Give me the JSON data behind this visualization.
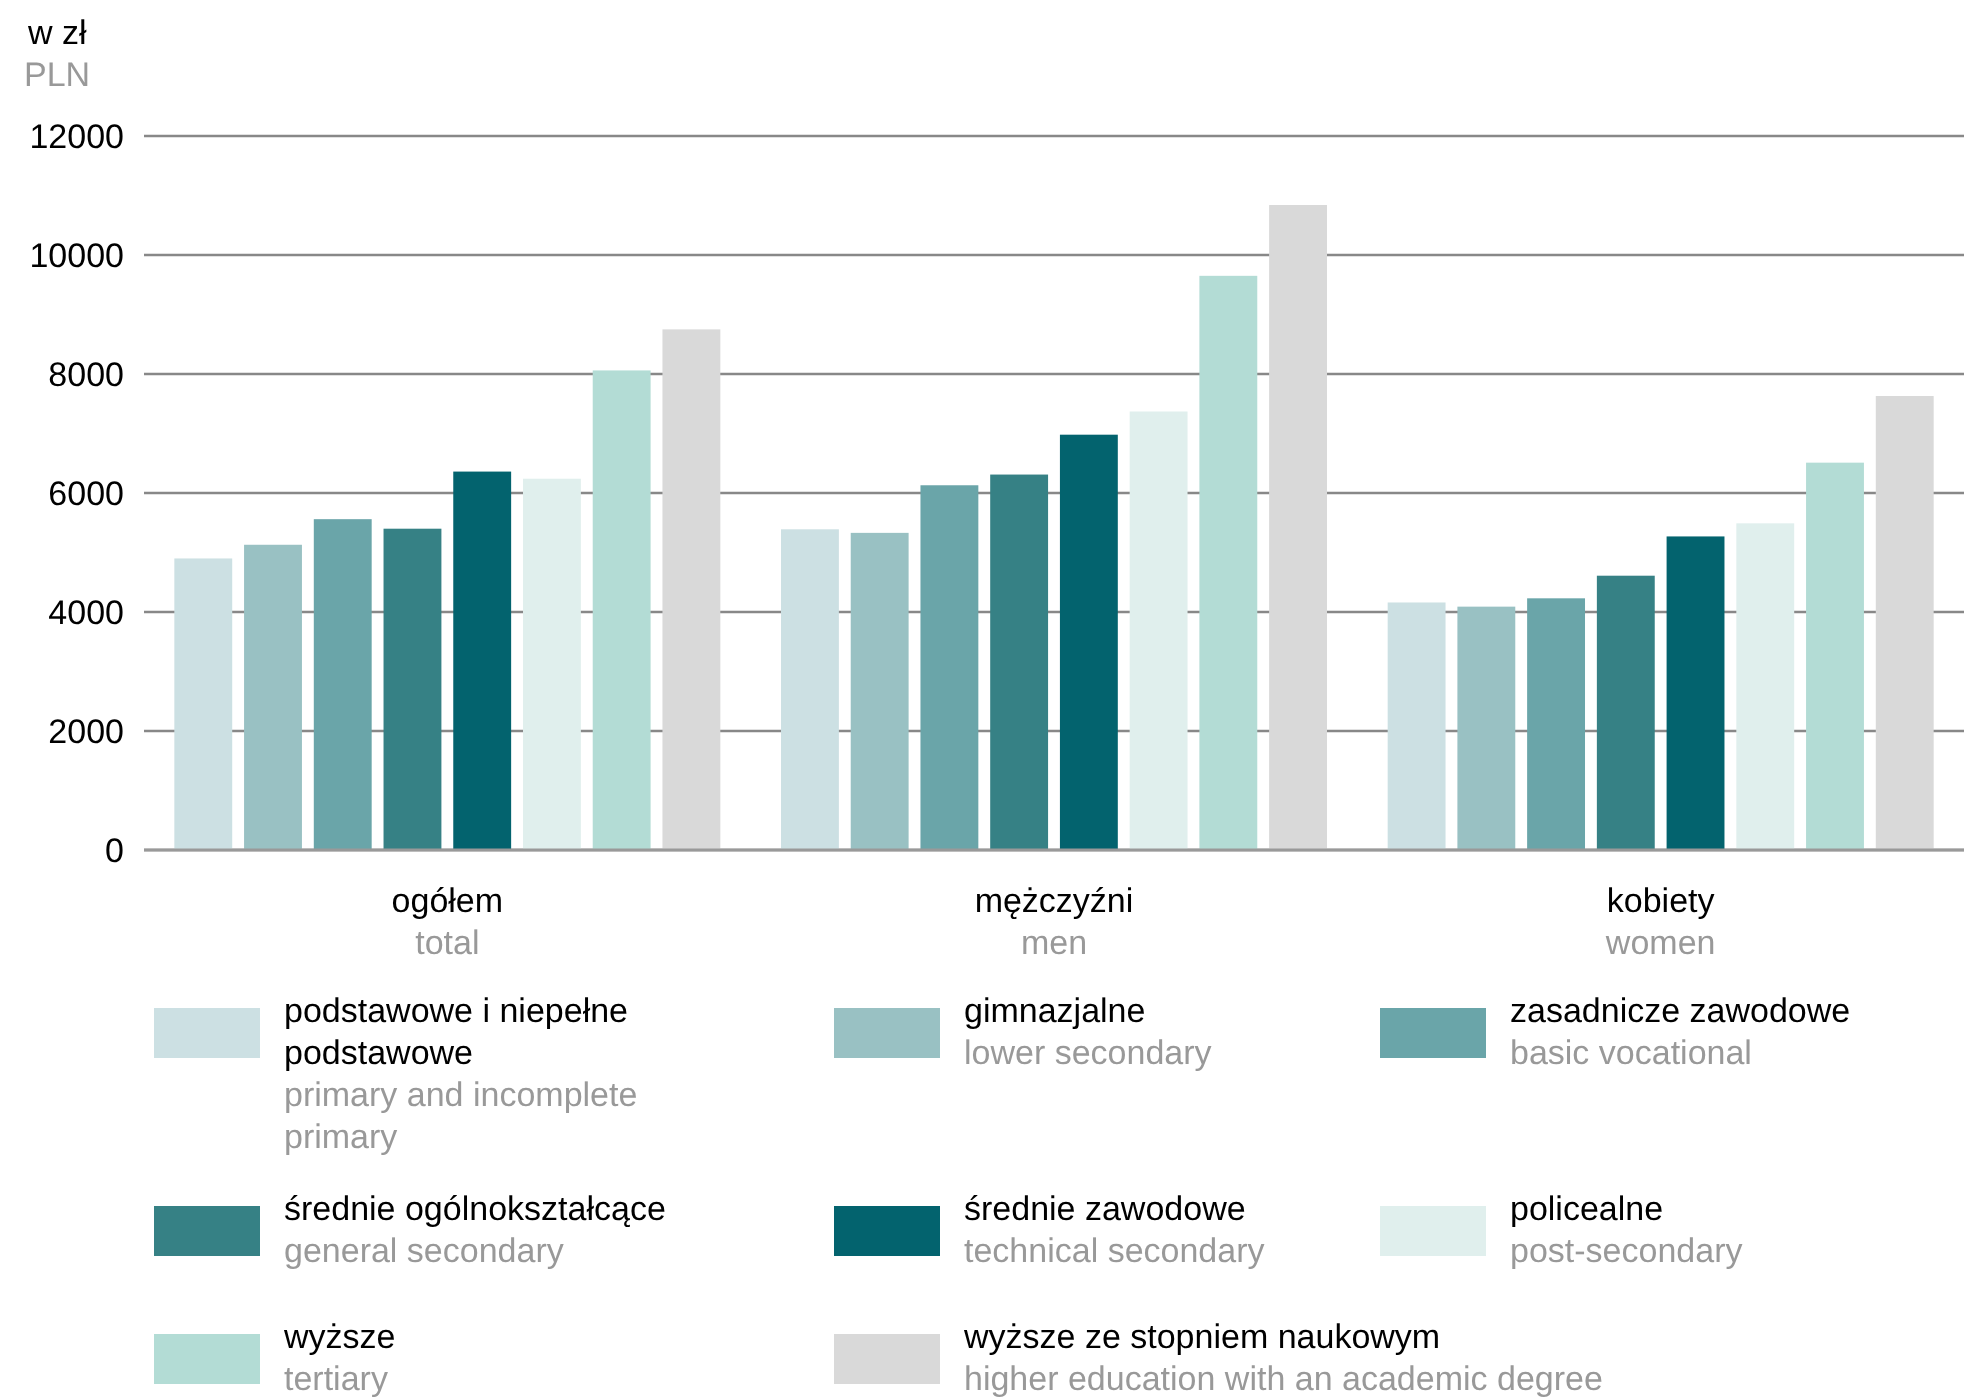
{
  "chart_data": {
    "type": "bar",
    "ylabel": "w zł\nPLN",
    "categories": [
      "ogółem\ntotal",
      "mężczyźni\nmen",
      "kobiety\nwomen"
    ],
    "ylim": [
      0,
      12000
    ],
    "yticks": [
      0,
      2000,
      4000,
      6000,
      8000,
      10000,
      12000
    ],
    "grid": "y",
    "legend": "bottom",
    "series": [
      {
        "name": "podstawowe i niepełne podstawowe\nprimary and incomplete primary",
        "color": "#cce0e3",
        "values": [
          4900,
          5390,
          4160
        ]
      },
      {
        "name": "gimnazjalne\nlower secondary",
        "color": "#99c1c3",
        "values": [
          5130,
          5330,
          4090
        ]
      },
      {
        "name": "zasadnicze zawodowe\nbasic vocational",
        "color": "#6aa5a9",
        "values": [
          5560,
          6130,
          4230
        ]
      },
      {
        "name": "średnie ogólnokształcące\ngeneral secondary",
        "color": "#368185",
        "values": [
          5400,
          6310,
          4610
        ]
      },
      {
        "name": "średnie zawodowe\ntechnical secondary",
        "color": "#03636e",
        "values": [
          6360,
          6980,
          5270
        ]
      },
      {
        "name": "policealne\npost-secondary",
        "color": "#e0efed",
        "values": [
          6240,
          7370,
          5490
        ]
      },
      {
        "name": "wyższe\ntertiary",
        "color": "#b3dcd5",
        "values": [
          8060,
          9650,
          6510
        ]
      },
      {
        "name": "wyższe ze stopniem naukowym\nhigher education with an academic degree",
        "color": "#d9d9d9",
        "values": [
          8750,
          10840,
          7630
        ]
      }
    ]
  }
}
